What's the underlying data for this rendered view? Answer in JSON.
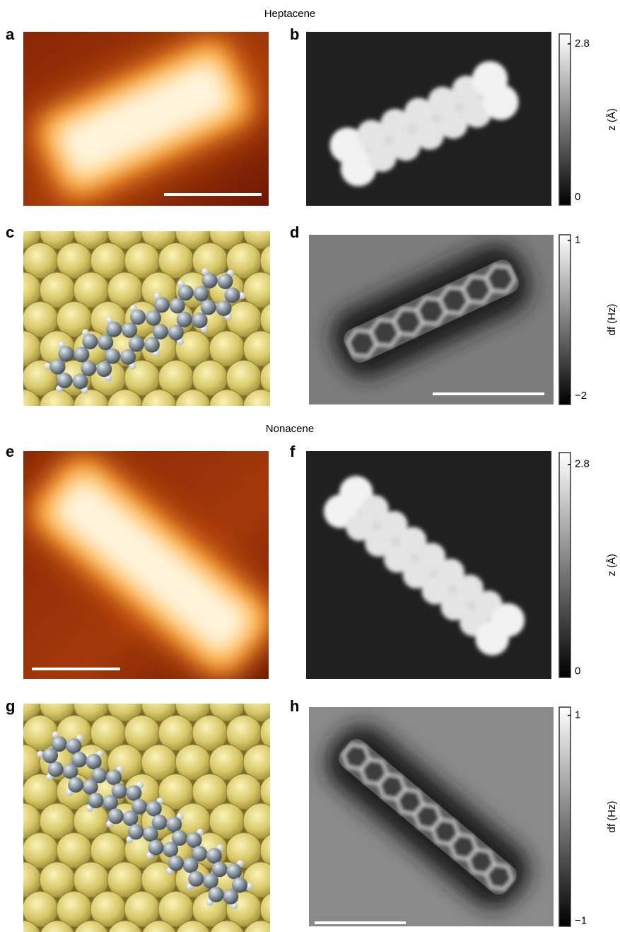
{
  "headings": [
    "Heptacene",
    "Nonacene"
  ],
  "panels": [
    {
      "label": "a"
    },
    {
      "label": "b"
    },
    {
      "label": "c"
    },
    {
      "label": "d"
    },
    {
      "label": "e"
    },
    {
      "label": "f"
    },
    {
      "label": "g"
    },
    {
      "label": "h"
    }
  ],
  "colorbars": [
    {
      "label": "z (Å)",
      "lim": [
        -0.14,
        2.98
      ],
      "ticks": [
        2.8,
        0
      ]
    },
    {
      "label": "df (Hz)",
      "lim": [
        -2.16,
        1.11
      ],
      "ticks": [
        1,
        {
          "value": -2,
          "label": "−2"
        }
      ]
    },
    {
      "label": "z (Å)",
      "lim": [
        -0.08,
        2.96
      ],
      "ticks": [
        2.8,
        0
      ]
    },
    {
      "label": "df (Hz)",
      "lim": [
        -1.05,
        1.08
      ],
      "ticks": [
        1,
        {
          "value": -1,
          "label": "−1"
        }
      ]
    }
  ]
}
